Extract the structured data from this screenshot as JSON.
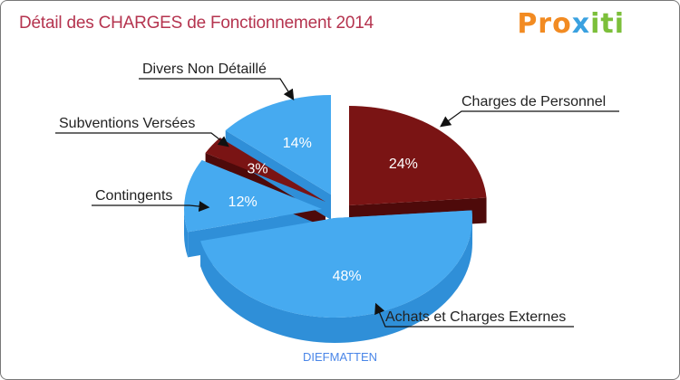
{
  "title": "Détail des CHARGES de Fonctionnement 2014",
  "logo": {
    "text": "Proxiti",
    "parts": [
      "Pro",
      "x",
      "iti"
    ]
  },
  "commune": "DIEFMATTEN",
  "colors": {
    "blue_top": "#46aaf0",
    "blue_side": "#2f8fd8",
    "red_top": "#7a1414",
    "red_side": "#4e0a0a",
    "title": "#b5344f"
  },
  "chart_data": {
    "type": "pie",
    "title": "Détail des CHARGES de Fonctionnement 2014",
    "subtitle": "DIEFMATTEN",
    "slices": [
      {
        "label": "Charges de Personnel",
        "value": 24,
        "display": "24%",
        "color": "red"
      },
      {
        "label": "Achats et Charges Externes",
        "value": 48,
        "display": "48%",
        "color": "blue"
      },
      {
        "label": "Contingents",
        "value": 12,
        "display": "12%",
        "color": "blue"
      },
      {
        "label": "Subventions Versées",
        "value": 3,
        "display": "3%",
        "color": "red"
      },
      {
        "label": "Divers Non Détaillé",
        "value": 14,
        "display": "14%",
        "color": "blue"
      }
    ]
  }
}
